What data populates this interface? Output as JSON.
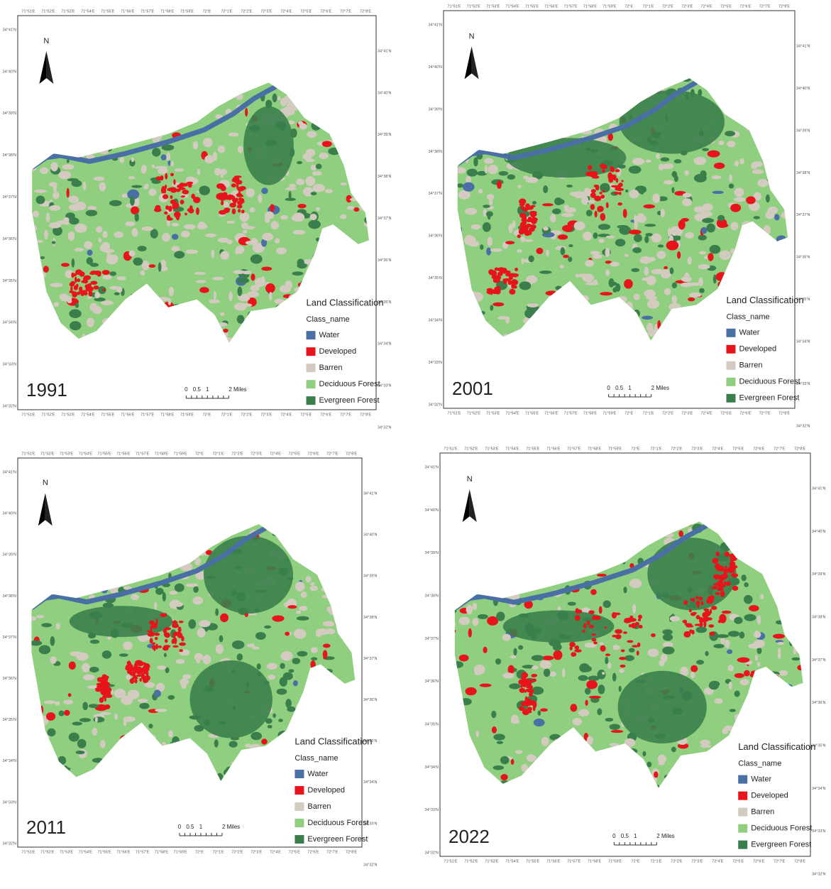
{
  "north": "N",
  "panels": [
    {
      "year": "1991"
    },
    {
      "year": "2001"
    },
    {
      "year": "2011"
    },
    {
      "year": "2022"
    }
  ],
  "legend": {
    "title": "Land Classification",
    "subtitle": "Class_name",
    "classes": [
      {
        "name": "Water",
        "color": "#4a6fa5"
      },
      {
        "name": "Developed",
        "color": "#e8141b"
      },
      {
        "name": "Barren",
        "color": "#d3cbc0"
      },
      {
        "name": "Deciduous Forest",
        "color": "#8fcf7f"
      },
      {
        "name": "Evergreen Forest",
        "color": "#3a7f4b"
      }
    ]
  },
  "scale_bar": [
    "0",
    "0.5",
    "1",
    "2 Miles"
  ],
  "lon_ticks": [
    "71°51'E",
    "71°52'E",
    "71°53'E",
    "71°54'E",
    "71°55'E",
    "71°56'E",
    "71°57'E",
    "71°58'E",
    "71°59'E",
    "72°E",
    "72°1'E",
    "72°2'E",
    "72°3'E",
    "72°4'E",
    "72°5'E",
    "72°6'E",
    "72°7'E",
    "72°8'E"
  ],
  "lat_ticks": [
    "34°41'N",
    "34°40'N",
    "34°39'N",
    "34°38'N",
    "34°37'N",
    "34°36'N",
    "34°35'N",
    "34°34'N",
    "34°33'N",
    "34°32'N"
  ]
}
